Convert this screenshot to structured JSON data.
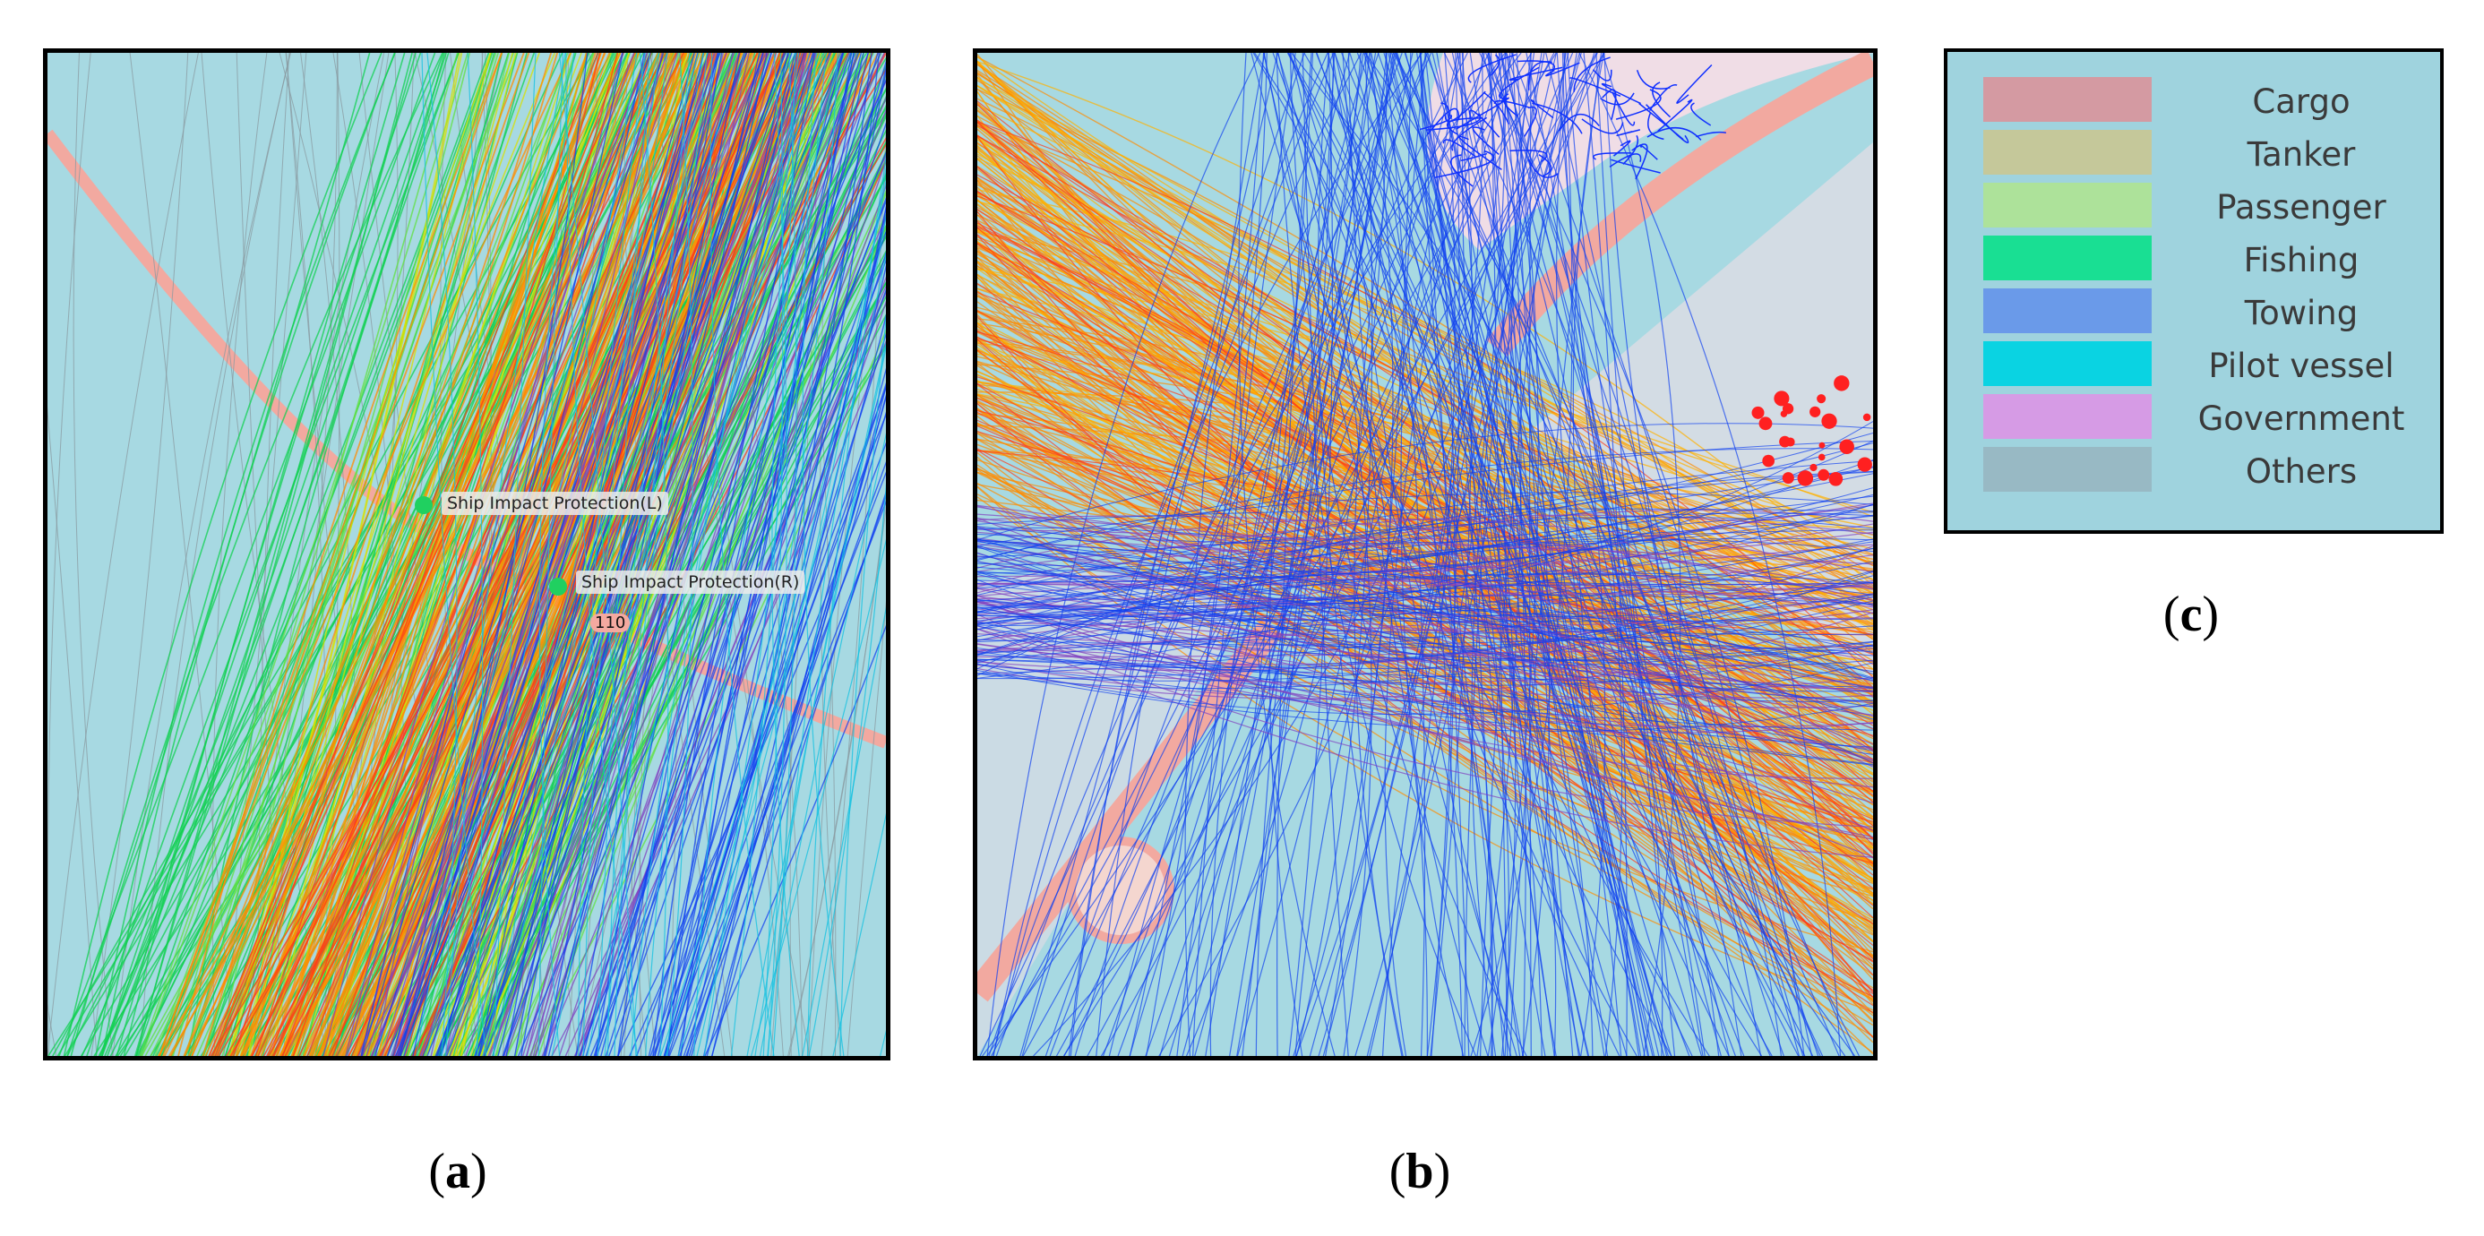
{
  "panels": {
    "a": {
      "caption_letter": "a",
      "labels": {
        "left": "Ship Impact Protection(L)",
        "right": "Ship Impact Protection(R)",
        "marker": "110"
      }
    },
    "b": {
      "caption_letter": "b"
    },
    "c": {
      "caption_letter": "c"
    }
  },
  "legend": {
    "items": [
      {
        "label": "Cargo",
        "color": "#d49aa2"
      },
      {
        "label": "Tanker",
        "color": "#c5c89a"
      },
      {
        "label": "Passenger",
        "color": "#ade29a"
      },
      {
        "label": "Fishing",
        "color": "#19df93"
      },
      {
        "label": "Towing",
        "color": "#6a9ae9"
      },
      {
        "label": "Pilot vessel",
        "color": "#0ad3e2"
      },
      {
        "label": "Government",
        "color": "#d69be5"
      },
      {
        "label": "Others",
        "color": "#98b9c4"
      }
    ]
  },
  "colors": {
    "sea": "#a7d9e2",
    "land": "#f0dde6",
    "bridge": "#f2a9a0",
    "track_orange": "#ff8c00",
    "track_red": "#ff3a1a",
    "track_yellow": "#d8e000",
    "track_green": "#10d050",
    "track_blue": "#1040f0",
    "track_cyan": "#10c0e0",
    "track_purple": "#8040c0",
    "track_gray": "#8a9aa0"
  }
}
